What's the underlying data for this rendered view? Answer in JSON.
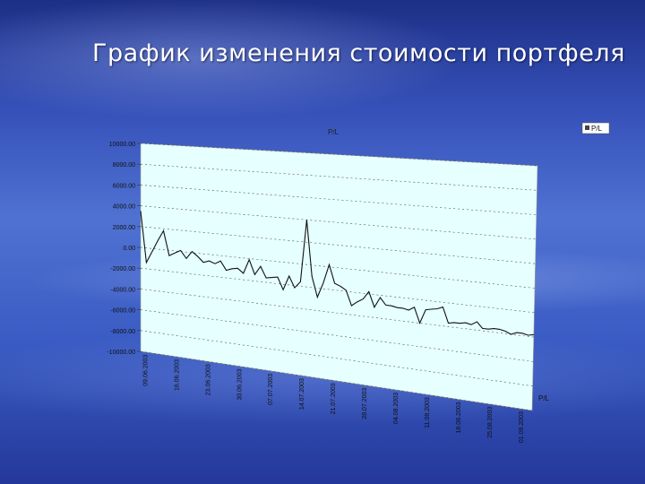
{
  "slide": {
    "title": "График изменения стоимости портфеля"
  },
  "chart_data": {
    "type": "line",
    "title": "P/L",
    "legend": {
      "label": "P/L",
      "placement": "top-right"
    },
    "depth_axis_label": "P/L",
    "grid": true,
    "ylim": [
      -10000,
      10000
    ],
    "yticks": [
      "10000.00",
      "8000.00",
      "6000.00",
      "4000.00",
      "2000.00",
      "0.00",
      "-2000.00",
      "-4000.00",
      "-6000.00",
      "-8000.00",
      "-10000.00"
    ],
    "xticks": [
      "09.06.2003",
      "16.06.2003",
      "23.06.2003",
      "30.06.2003",
      "07.07.2003",
      "14.07.2003",
      "21.07.2003",
      "28.07.2003",
      "04.08.2003",
      "11.08.2003",
      "18.08.2003",
      "25.08.2003",
      "01.09.2003"
    ],
    "colors": {
      "plot_bg": "#e6ffff",
      "line": "#111111",
      "grid": "#555555"
    },
    "series": [
      {
        "name": "P/L",
        "values": [
          3500,
          -1400,
          -300,
          800,
          1800,
          -500,
          -200,
          100,
          -600,
          100,
          -300,
          -800,
          -600,
          -800,
          -500,
          -1300,
          -1100,
          -1000,
          -1400,
          -100,
          -1400,
          -600,
          -1600,
          -1500,
          -1400,
          -2500,
          -1200,
          -2200,
          -1600,
          4000,
          -1000,
          -2800,
          -1500,
          200,
          -1400,
          -1600,
          -1900,
          -3200,
          -2800,
          -2500,
          -1800,
          -3100,
          -2200,
          -2800,
          -2800,
          -2900,
          -2900,
          -3000,
          -2700,
          -4000,
          -2800,
          -2700,
          -2600,
          -2400,
          -3700,
          -3600,
          -3600,
          -3500,
          -3600,
          -3300,
          -3800,
          -3800,
          -3700,
          -3700,
          -3800,
          -4000,
          -3800,
          -3800,
          -3900,
          -3800
        ]
      }
    ]
  }
}
